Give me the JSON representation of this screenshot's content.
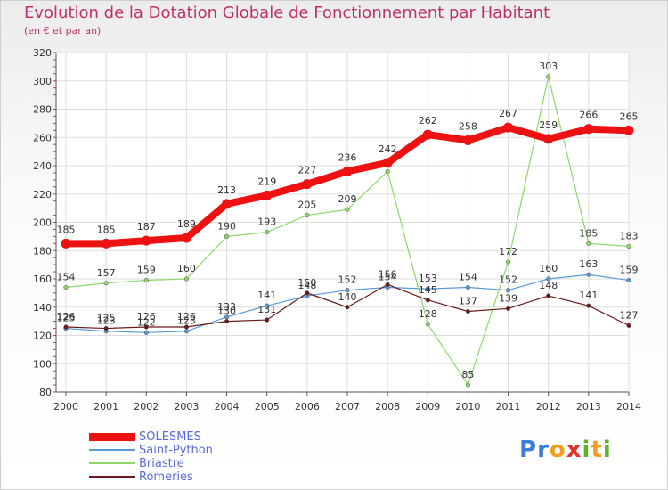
{
  "title": "Evolution de la Dotation Globale de Fonctionnement par Habitant",
  "subtitle": "(en € et par an)",
  "logo": {
    "letters": [
      "P",
      "r",
      "o",
      "x",
      "i",
      "t",
      "i"
    ],
    "colors": [
      "#3a7fd0",
      "#3a7fd0",
      "#f0a020",
      "#e03030",
      "#60b030",
      "#f0a020",
      "#60b030"
    ]
  },
  "chart_data": {
    "type": "line",
    "title": "Evolution de la Dotation Globale de Fonctionnement par Habitant",
    "ylabel": "(en € et par an)",
    "x": [
      2000,
      2001,
      2002,
      2003,
      2004,
      2005,
      2006,
      2007,
      2008,
      2009,
      2010,
      2011,
      2012,
      2013,
      2014
    ],
    "ylim": [
      80,
      320
    ],
    "yticks": [
      80,
      100,
      120,
      140,
      160,
      180,
      200,
      220,
      240,
      260,
      280,
      300,
      320
    ],
    "grid": true,
    "series": [
      {
        "name": "SOLESMES",
        "color": "#ee1111",
        "width": 8,
        "marker": 8,
        "values": [
          185,
          185,
          187,
          189,
          213,
          219,
          227,
          236,
          242,
          262,
          258,
          267,
          259,
          266,
          265
        ],
        "labels": [
          185,
          185,
          187,
          189,
          213,
          219,
          227,
          236,
          242,
          262,
          258,
          267,
          259,
          266,
          265
        ]
      },
      {
        "name": "Saint-Python",
        "color": "#5a9ad6",
        "width": 1.2,
        "marker": 3,
        "values": [
          125,
          123,
          122,
          123,
          133,
          141,
          148,
          152,
          154,
          153,
          154,
          152,
          160,
          163,
          159
        ],
        "labels": [
          125,
          123,
          122,
          123,
          133,
          141,
          148,
          152,
          154,
          153,
          154,
          152,
          160,
          163,
          159
        ]
      },
      {
        "name": "Briastre",
        "color": "#8cd86a",
        "width": 1.2,
        "marker": 3,
        "values": [
          154,
          157,
          159,
          160,
          190,
          193,
          205,
          209,
          236,
          128,
          85,
          172,
          303,
          185,
          183
        ],
        "labels": [
          154,
          157,
          159,
          160,
          190,
          193,
          205,
          209,
          "",
          128,
          85,
          172,
          303,
          185,
          183
        ]
      },
      {
        "name": "Romeries",
        "color": "#6a1a1a",
        "width": 1.2,
        "marker": 3,
        "values": [
          126,
          125,
          126,
          126,
          130,
          131,
          150,
          140,
          156,
          145,
          137,
          139,
          148,
          141,
          127
        ],
        "labels": [
          126,
          125,
          126,
          126,
          130,
          131,
          150,
          140,
          156,
          145,
          137,
          139,
          148,
          141,
          127
        ]
      }
    ]
  }
}
